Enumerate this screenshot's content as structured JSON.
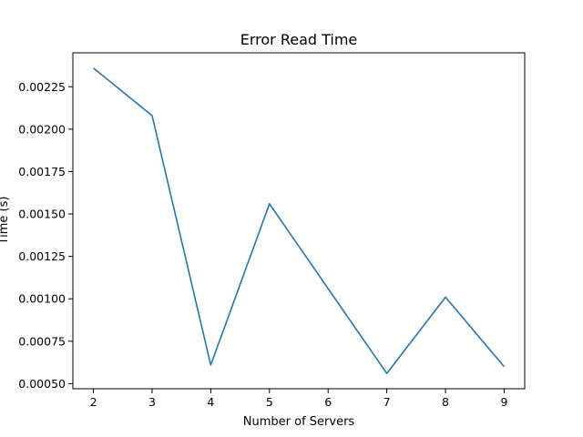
{
  "chart_data": {
    "type": "line",
    "title": "Error Read Time",
    "xlabel": "Number of Servers",
    "ylabel": "Time (s)",
    "x": [
      2,
      3,
      4,
      5,
      6,
      7,
      8,
      9
    ],
    "series": [
      {
        "color": "#1f77b4",
        "values": [
          0.00236,
          0.00208,
          0.00061,
          0.00156,
          0.00106,
          0.00056,
          0.00101,
          0.0006
        ]
      }
    ],
    "xlim": [
      1.65,
      9.35
    ],
    "ylim": [
      0.00047,
      0.00245
    ],
    "xticks": [
      2,
      3,
      4,
      5,
      6,
      7,
      8,
      9
    ],
    "yticks": [
      0.0005,
      0.00075,
      0.001,
      0.00125,
      0.0015,
      0.00175,
      0.002,
      0.00225
    ],
    "ytick_labels": [
      "0.00050",
      "0.00075",
      "0.00100",
      "0.00125",
      "0.00150",
      "0.00175",
      "0.00200",
      "0.00225"
    ],
    "grid": false,
    "legend": "none"
  }
}
